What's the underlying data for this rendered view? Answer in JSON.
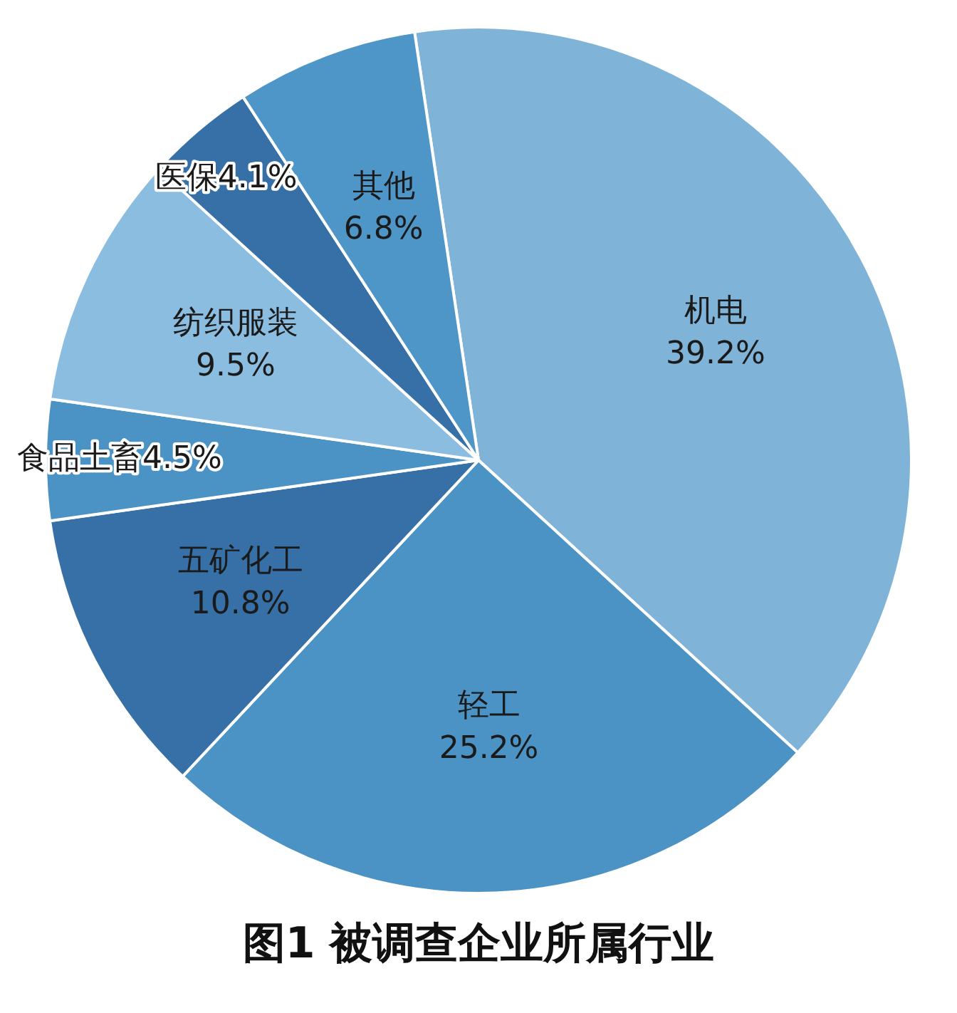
{
  "chart_data": {
    "type": "pie",
    "title": "图1  被调查企业所属行业",
    "categories": [
      "机电",
      "轻工",
      "五矿化工",
      "食品土畜",
      "纺织服装",
      "医保",
      "其他"
    ],
    "values": [
      39.2,
      25.2,
      10.8,
      4.5,
      9.5,
      4.1,
      6.8
    ],
    "value_labels": [
      "39.2%",
      "25.2%",
      "10.8%",
      "4.5%",
      "9.5%",
      "4.1%",
      "6.8%"
    ],
    "colors": [
      "#7fb3d7",
      "#4a93c4",
      "#3670a6",
      "#4a93c4",
      "#8bbde0",
      "#3670a6",
      "#4f96c8"
    ],
    "legend": false
  }
}
